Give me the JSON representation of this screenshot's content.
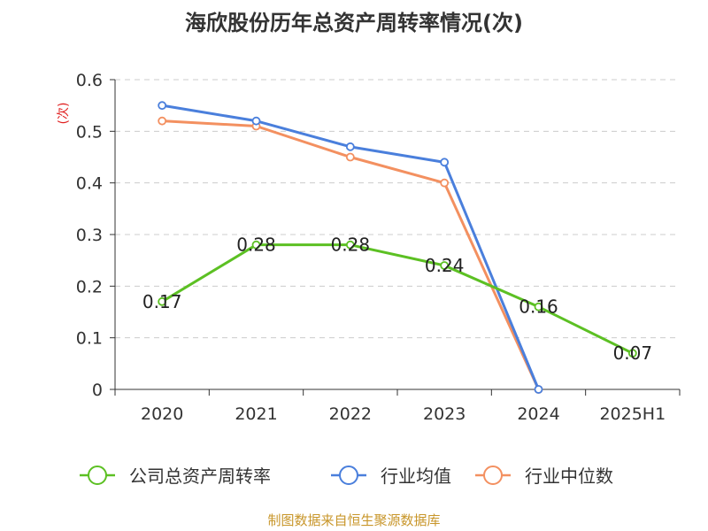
{
  "chart_data": {
    "type": "line",
    "title": "海欣股份历年总资产周转率情况(次)",
    "ylabel": "(次)",
    "xlabel": "",
    "categories": [
      "2020",
      "2021",
      "2022",
      "2023",
      "2024",
      "2025H1"
    ],
    "ylim": [
      0,
      0.6
    ],
    "yticks": [
      "0",
      "0.1",
      "0.2",
      "0.3",
      "0.4",
      "0.5",
      "0.6"
    ],
    "grid": true,
    "legend_position": "bottom",
    "series": [
      {
        "name": "公司总资产周转率",
        "color": "#5cc023",
        "values": [
          0.17,
          0.28,
          0.28,
          0.24,
          0.16,
          0.07
        ],
        "labels": [
          "0.17",
          "0.28",
          "0.28",
          "0.24",
          "0.16",
          "0.07"
        ]
      },
      {
        "name": "行业均值",
        "color": "#4a7fdc",
        "values": [
          0.55,
          0.52,
          0.47,
          0.44,
          0.0,
          null
        ]
      },
      {
        "name": "行业中位数",
        "color": "#f39060",
        "values": [
          0.52,
          0.51,
          0.45,
          0.4,
          0.0,
          null
        ]
      }
    ],
    "source": "制图数据来自恒生聚源数据库"
  }
}
